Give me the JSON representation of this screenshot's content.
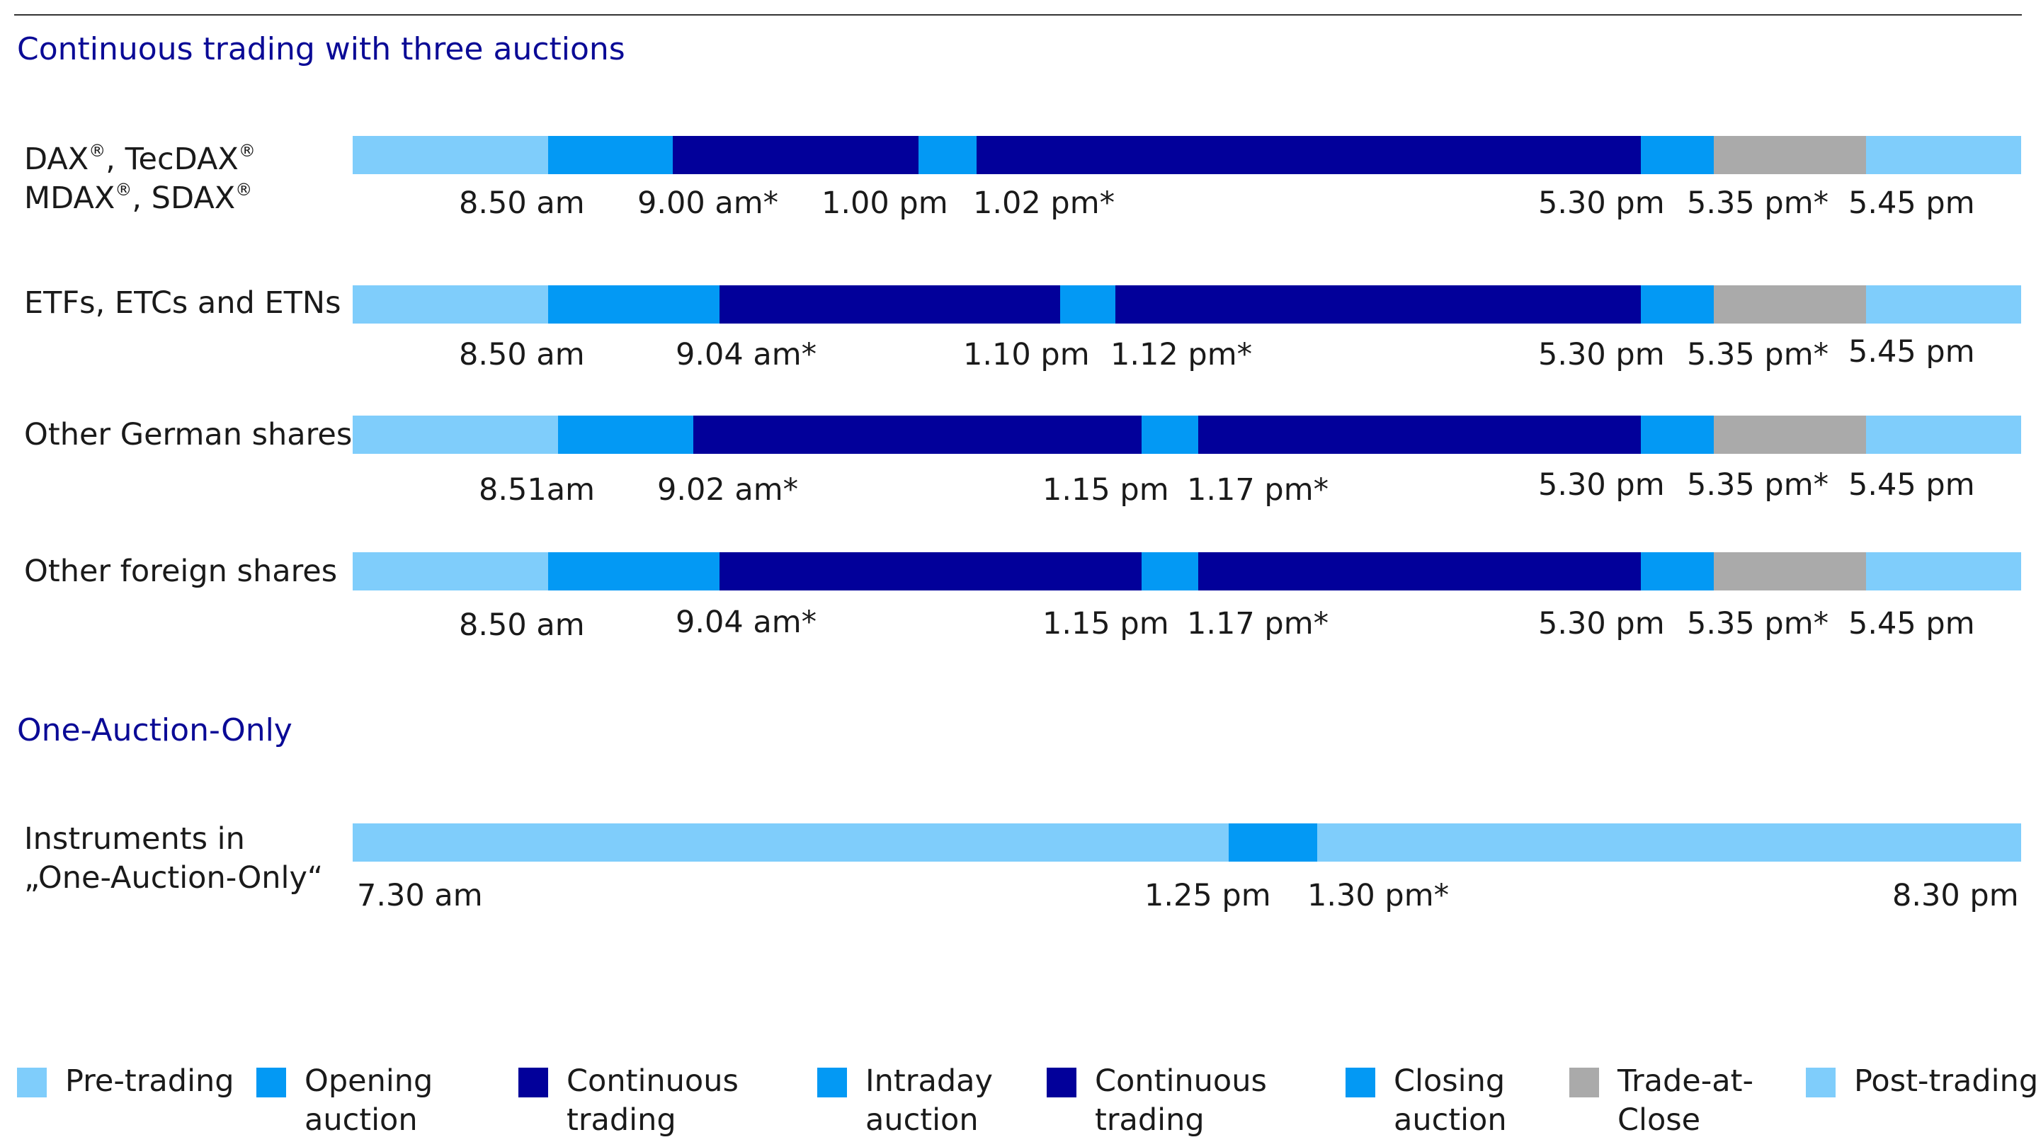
{
  "colors": {
    "pre_trading": "#7fcdfb",
    "opening_auction": "#0399f4",
    "continuous_trading": "#02009a",
    "intraday_auction": "#0399f4",
    "closing_auction": "#0399f4",
    "trade_at_close": "#aaaaaa",
    "post_trading": "#7fcdfb",
    "heading": "#0a0a96"
  },
  "sections": [
    {
      "title": "Continuous trading with three auctions"
    },
    {
      "title": "One-Auction-Only"
    }
  ],
  "rows": [
    {
      "label_lines": [
        "DAX®, TecDAX®",
        "MDAX®, SDAX®"
      ],
      "segments": [
        {
          "phase": "pre_trading",
          "from": 0.0,
          "to": 0.117
        },
        {
          "phase": "opening_auction",
          "from": 0.117,
          "to": 0.192
        },
        {
          "phase": "continuous_trading",
          "from": 0.192,
          "to": 0.339
        },
        {
          "phase": "intraday_auction",
          "from": 0.339,
          "to": 0.374
        },
        {
          "phase": "continuous_trading",
          "from": 0.374,
          "to": 0.772
        },
        {
          "phase": "closing_auction",
          "from": 0.772,
          "to": 0.816
        },
        {
          "phase": "trade_at_close",
          "from": 0.816,
          "to": 0.907
        },
        {
          "phase": "post_trading",
          "from": 0.907,
          "to": 1.0
        }
      ],
      "times": [
        "8.50 am",
        "9.00 am*",
        "1.00 pm",
        "1.02 pm*",
        "5.30 pm",
        "5.35 pm*",
        "5.45 pm"
      ]
    },
    {
      "label_lines": [
        "ETFs, ETCs and ETNs"
      ],
      "segments": [
        {
          "phase": "pre_trading",
          "from": 0.0,
          "to": 0.117
        },
        {
          "phase": "opening_auction",
          "from": 0.117,
          "to": 0.22
        },
        {
          "phase": "continuous_trading",
          "from": 0.22,
          "to": 0.424
        },
        {
          "phase": "intraday_auction",
          "from": 0.424,
          "to": 0.457
        },
        {
          "phase": "continuous_trading",
          "from": 0.457,
          "to": 0.772
        },
        {
          "phase": "closing_auction",
          "from": 0.772,
          "to": 0.816
        },
        {
          "phase": "trade_at_close",
          "from": 0.816,
          "to": 0.907
        },
        {
          "phase": "post_trading",
          "from": 0.907,
          "to": 1.0
        }
      ],
      "times": [
        "8.50 am",
        "9.04 am*",
        "1.10 pm",
        "1.12 pm*",
        "5.30 pm",
        "5.35 pm*",
        "5.45 pm"
      ]
    },
    {
      "label_lines": [
        "Other German shares"
      ],
      "segments": [
        {
          "phase": "pre_trading",
          "from": 0.0,
          "to": 0.123
        },
        {
          "phase": "opening_auction",
          "from": 0.123,
          "to": 0.204
        },
        {
          "phase": "continuous_trading",
          "from": 0.204,
          "to": 0.473
        },
        {
          "phase": "intraday_auction",
          "from": 0.473,
          "to": 0.507
        },
        {
          "phase": "continuous_trading",
          "from": 0.507,
          "to": 0.772
        },
        {
          "phase": "closing_auction",
          "from": 0.772,
          "to": 0.816
        },
        {
          "phase": "trade_at_close",
          "from": 0.816,
          "to": 0.907
        },
        {
          "phase": "post_trading",
          "from": 0.907,
          "to": 1.0
        }
      ],
      "times": [
        "8.51am",
        "9.02 am*",
        "1.15 pm",
        "1.17 pm*",
        "5.30 pm",
        "5.35 pm*",
        "5.45 pm"
      ]
    },
    {
      "label_lines": [
        "Other foreign shares"
      ],
      "segments": [
        {
          "phase": "pre_trading",
          "from": 0.0,
          "to": 0.117
        },
        {
          "phase": "opening_auction",
          "from": 0.117,
          "to": 0.22
        },
        {
          "phase": "continuous_trading",
          "from": 0.22,
          "to": 0.473
        },
        {
          "phase": "intraday_auction",
          "from": 0.473,
          "to": 0.507
        },
        {
          "phase": "continuous_trading",
          "from": 0.507,
          "to": 0.772
        },
        {
          "phase": "closing_auction",
          "from": 0.772,
          "to": 0.816
        },
        {
          "phase": "trade_at_close",
          "from": 0.816,
          "to": 0.907
        },
        {
          "phase": "post_trading",
          "from": 0.907,
          "to": 1.0
        }
      ],
      "times": [
        "8.50 am",
        "9.04 am*",
        "1.15 pm",
        "1.17 pm*",
        "5.30 pm",
        "5.35 pm*",
        "5.45 pm"
      ]
    },
    {
      "label_lines": [
        "Instruments in",
        "„One-Auction-Only“"
      ],
      "segments": [
        {
          "phase": "pre_trading",
          "from": 0.0,
          "to": 0.525
        },
        {
          "phase": "intraday_auction",
          "from": 0.525,
          "to": 0.578
        },
        {
          "phase": "post_trading",
          "from": 0.578,
          "to": 1.0
        }
      ],
      "times": [
        "7.30 am",
        "1.25 pm",
        "1.30 pm*",
        "8.30 pm"
      ]
    }
  ],
  "legend": [
    {
      "phase": "pre_trading",
      "lines": [
        "Pre-trading"
      ]
    },
    {
      "phase": "opening_auction",
      "lines": [
        "Opening",
        "auction"
      ]
    },
    {
      "phase": "continuous_trading",
      "lines": [
        "Continuous",
        "trading"
      ]
    },
    {
      "phase": "intraday_auction",
      "lines": [
        "Intraday",
        "auction"
      ]
    },
    {
      "phase": "continuous_trading",
      "lines": [
        "Continuous",
        "trading"
      ]
    },
    {
      "phase": "closing_auction",
      "lines": [
        "Closing",
        "auction"
      ]
    },
    {
      "phase": "trade_at_close",
      "lines": [
        "Trade-at-",
        "Close"
      ]
    },
    {
      "phase": "post_trading",
      "lines": [
        "Post-trading"
      ]
    }
  ]
}
